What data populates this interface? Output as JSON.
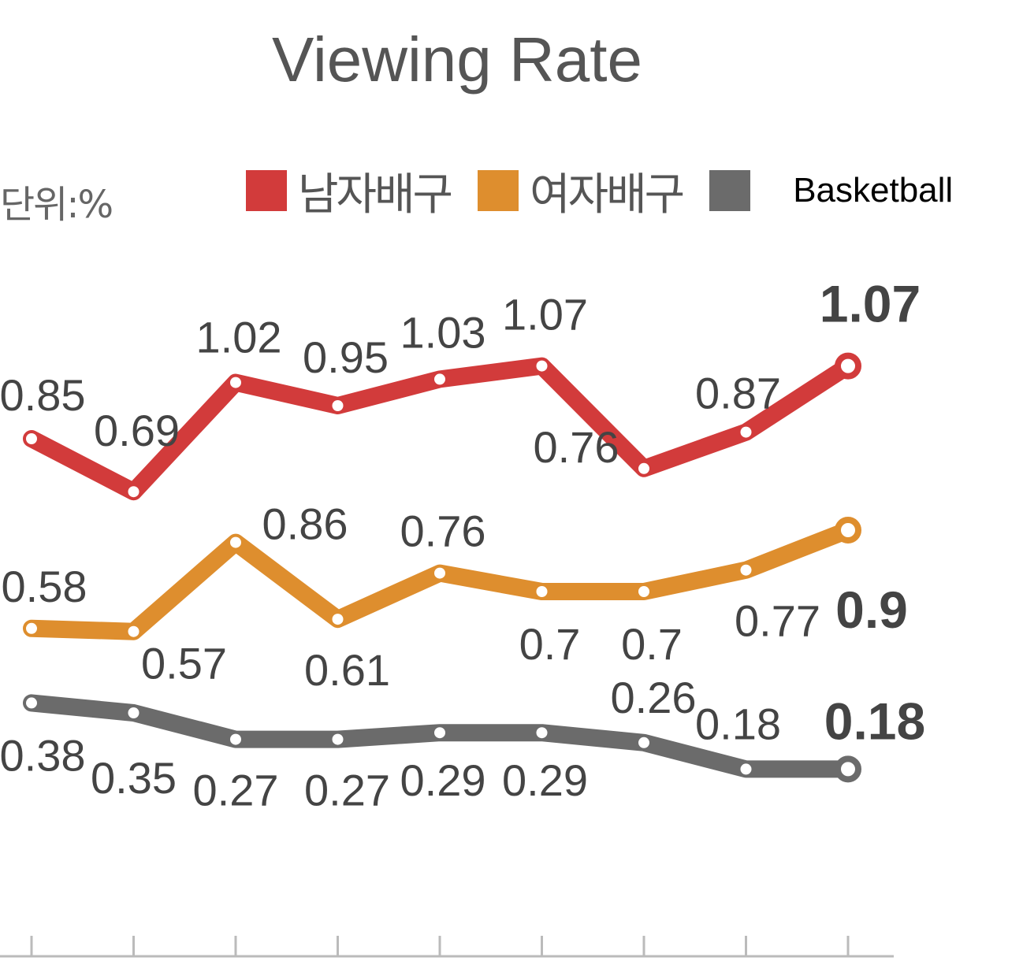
{
  "chart_data": {
    "type": "line",
    "title": "Viewing Rate",
    "unit_label": "단위:%",
    "categories": [
      "",
      "",
      "",
      "",
      "",
      "",
      "",
      "",
      ""
    ],
    "ylim": [
      0,
      1.2
    ],
    "grid": false,
    "legend": "top",
    "series": [
      {
        "name": "남자배구",
        "color": "#d23b3b",
        "values": [
          0.85,
          0.69,
          1.02,
          0.95,
          1.03,
          1.07,
          0.76,
          0.87,
          1.07
        ]
      },
      {
        "name": "여자배구",
        "color": "#de8e2e",
        "values": [
          0.58,
          0.57,
          0.86,
          0.61,
          0.76,
          0.7,
          0.7,
          0.77,
          0.9
        ]
      },
      {
        "name": "Basketball",
        "color": "#6b6b6b",
        "values": [
          0.38,
          0.35,
          0.27,
          0.27,
          0.29,
          0.29,
          0.26,
          0.18,
          0.18
        ]
      }
    ]
  }
}
